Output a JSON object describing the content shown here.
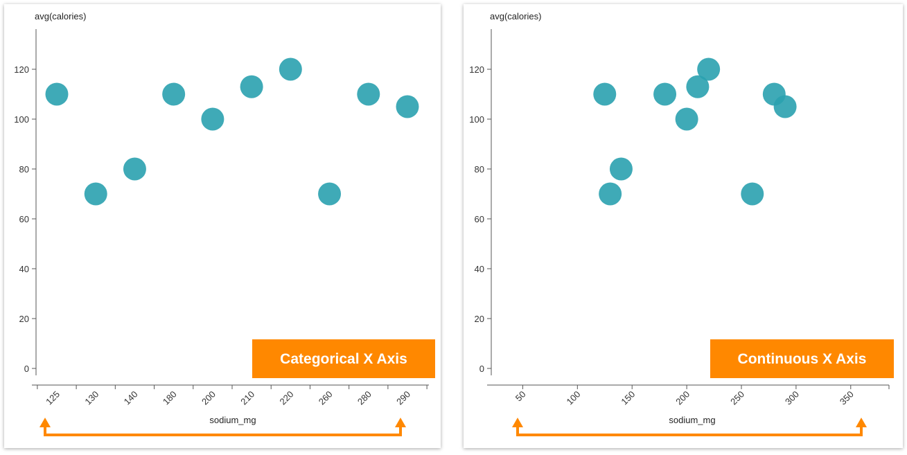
{
  "accent_color": "#ff8800",
  "point_color": "#2aa1af",
  "chart_data": [
    {
      "type": "scatter",
      "xscale": "categorical",
      "badge": "Categorical X Axis",
      "ylabel": "avg(calories)",
      "xlabel": "sodium_mg",
      "ylim": [
        0,
        130
      ],
      "yticks": [
        0,
        20,
        40,
        60,
        80,
        100,
        120
      ],
      "categories": [
        "125",
        "130",
        "140",
        "180",
        "200",
        "210",
        "220",
        "260",
        "280",
        "290"
      ],
      "x": [
        "125",
        "130",
        "140",
        "180",
        "200",
        "210",
        "220",
        "260",
        "280",
        "290"
      ],
      "y": [
        110,
        70,
        80,
        110,
        100,
        113,
        120,
        70,
        110,
        105
      ]
    },
    {
      "type": "scatter",
      "xscale": "linear",
      "badge": "Continuous X Axis",
      "ylabel": "avg(calories)",
      "xlabel": "sodium_mg",
      "xlim": [
        25,
        385
      ],
      "xticks": [
        50,
        100,
        150,
        200,
        250,
        300,
        350
      ],
      "ylim": [
        0,
        130
      ],
      "yticks": [
        0,
        20,
        40,
        60,
        80,
        100,
        120
      ],
      "x": [
        125,
        130,
        140,
        180,
        200,
        210,
        220,
        260,
        280,
        290
      ],
      "y": [
        110,
        70,
        80,
        110,
        100,
        113,
        120,
        70,
        110,
        105
      ]
    }
  ]
}
